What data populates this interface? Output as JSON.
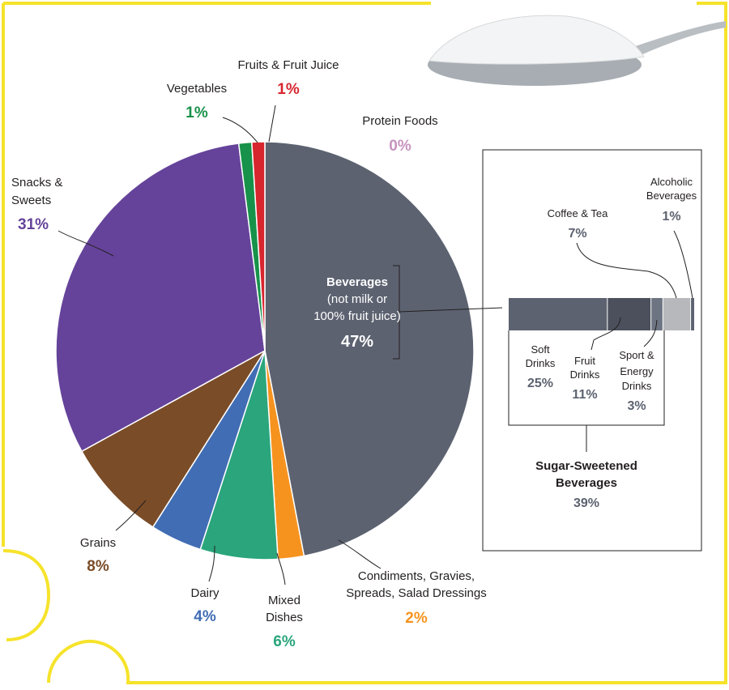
{
  "colors": {
    "frame": "#f6e32b",
    "spoon": "#9aa0a6"
  },
  "chart_data": {
    "type": "pie",
    "slices": [
      {
        "key": "beverages",
        "label": "Beverages",
        "sublabel": "(not milk or",
        "sublabel2": "100% fruit juice)",
        "value": 47,
        "pct_label": "47%",
        "color": "#5c6270",
        "label_color": "#5c6270"
      },
      {
        "key": "condiments",
        "label": "Condiments, Gravies,",
        "label2": "Spreads, Salad Dressings",
        "value": 2,
        "pct_label": "2%",
        "color": "#f6931f",
        "label_color": "#f6931f"
      },
      {
        "key": "mixed",
        "label": "Mixed",
        "label2": "Dishes",
        "value": 6,
        "pct_label": "6%",
        "color": "#2aa57c",
        "label_color": "#2aa57c"
      },
      {
        "key": "dairy",
        "label": "Dairy",
        "value": 4,
        "pct_label": "4%",
        "color": "#416db4",
        "label_color": "#416db4"
      },
      {
        "key": "grains",
        "label": "Grains",
        "value": 8,
        "pct_label": "8%",
        "color": "#7a4c27",
        "label_color": "#7a4c27"
      },
      {
        "key": "snacks",
        "label": "Snacks &",
        "label2": "Sweets",
        "value": 31,
        "pct_label": "31%",
        "color": "#65439a",
        "label_color": "#65439a"
      },
      {
        "key": "vegetables",
        "label": "Vegetables",
        "value": 1,
        "pct_label": "1%",
        "color": "#17924a",
        "label_color": "#17924a"
      },
      {
        "key": "fruits",
        "label": "Fruits & Fruit Juice",
        "value": 1,
        "pct_label": "1%",
        "color": "#d7262e",
        "label_color": "#d7262e"
      },
      {
        "key": "protein",
        "label": "Protein Foods",
        "value": 0,
        "pct_label": "0%",
        "color": "#c793c0",
        "label_color": "#c793c0",
        "label_fill": "#999999"
      }
    ],
    "beverage_breakdown": {
      "type": "stacked-bar",
      "segments": [
        {
          "key": "soft",
          "label": "Soft",
          "label2": "Drinks",
          "value": 25,
          "pct_label": "25%",
          "color": "#5c6270"
        },
        {
          "key": "fruitdrinks",
          "label": "Fruit",
          "label2": "Drinks",
          "value": 11,
          "pct_label": "11%",
          "color": "#4b505c"
        },
        {
          "key": "sport",
          "label": "Sport &",
          "label2": "Energy",
          "label3": "Drinks",
          "value": 3,
          "pct_label": "3%",
          "color": "#6d7482"
        },
        {
          "key": "coffee",
          "label": "Coffee & Tea",
          "value": 7,
          "pct_label": "7%",
          "color": "#b7b8bb"
        },
        {
          "key": "alcohol",
          "label": "Alcoholic",
          "label2": "Beverages",
          "value": 1,
          "pct_label": "1%",
          "color": "#5c6270"
        }
      ],
      "group": {
        "label": "Sugar-Sweetened",
        "label2": "Beverages",
        "value": 39,
        "pct_label": "39%"
      }
    }
  }
}
